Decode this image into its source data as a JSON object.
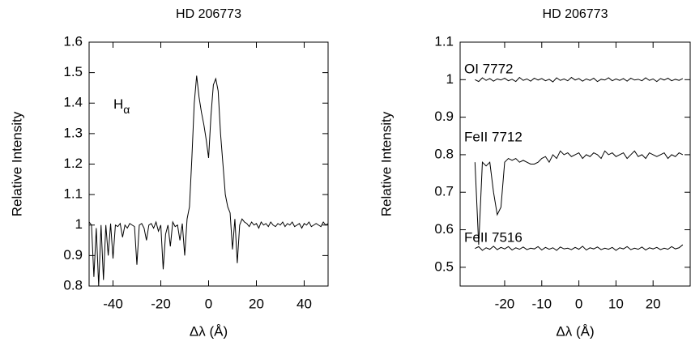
{
  "chart_data": [
    {
      "type": "line",
      "title": "HD 206773",
      "xlabel": "Δλ (Å)",
      "ylabel": "Relative Intensity",
      "annotation": {
        "text": "H",
        "subscript": "α"
      },
      "xlim": [
        -50,
        50
      ],
      "ylim": [
        0.8,
        1.6
      ],
      "xticks": [
        -40,
        -20,
        0,
        20,
        40
      ],
      "yticks": [
        0.8,
        0.9,
        1,
        1.1,
        1.2,
        1.3,
        1.4,
        1.5,
        1.6
      ],
      "x": [
        -50,
        -49,
        -48,
        -47,
        -46,
        -45,
        -44,
        -43,
        -42,
        -41,
        -40,
        -39,
        -38,
        -37,
        -36,
        -35,
        -34,
        -33,
        -32,
        -31,
        -30,
        -29,
        -28,
        -27,
        -26,
        -25,
        -24,
        -23,
        -22,
        -21,
        -20,
        -19,
        -18,
        -17,
        -16,
        -15,
        -14,
        -13,
        -12,
        -11,
        -10,
        -9,
        -8,
        -7,
        -6,
        -5,
        -4,
        -3,
        -2,
        -1,
        0,
        1,
        2,
        3,
        4,
        5,
        6,
        7,
        8,
        9,
        10,
        11,
        12,
        13,
        14,
        15,
        16,
        17,
        18,
        19,
        20,
        21,
        22,
        23,
        24,
        25,
        26,
        27,
        28,
        29,
        30,
        31,
        32,
        33,
        34,
        35,
        36,
        37,
        38,
        39,
        40,
        41,
        42,
        43,
        44,
        45,
        46,
        47,
        48,
        49,
        50
      ],
      "series": [
        {
          "color": "#000000",
          "values": [
            1.01,
            1.0,
            0.83,
            0.99,
            0.8,
            1.0,
            0.82,
            1.0,
            0.9,
            1.005,
            0.89,
            1.0,
            0.995,
            1.005,
            0.96,
            1.0,
            0.99,
            1.005,
            1.0,
            0.995,
            0.87,
            1.0,
            1.005,
            0.99,
            0.95,
            1.0,
            1.005,
            0.99,
            1.01,
            0.98,
            1.0,
            0.855,
            0.97,
            1.0,
            0.93,
            1.01,
            0.995,
            1.0,
            0.95,
            1.005,
            0.9,
            1.02,
            1.06,
            1.22,
            1.4,
            1.49,
            1.42,
            1.37,
            1.33,
            1.28,
            1.22,
            1.36,
            1.46,
            1.48,
            1.44,
            1.3,
            1.2,
            1.1,
            1.06,
            1.04,
            0.92,
            1.02,
            0.875,
            1.0,
            1.02,
            1.01,
            1.005,
            0.995,
            1.01,
            1.0,
            1.005,
            0.99,
            1.01,
            1.0,
            1.005,
            0.995,
            1.01,
            1.0,
            0.995,
            1.005,
            1.0,
            1.01,
            0.995,
            1.005,
            1.0,
            1.01,
            0.995,
            1.0,
            1.005,
            0.99,
            1.005,
            1.0,
            1.01,
            0.995,
            1.0,
            1.005,
            1.0,
            0.995,
            1.01,
            1.0,
            1.005
          ]
        }
      ]
    },
    {
      "type": "line",
      "title": "HD 206773",
      "xlabel": "Δλ (Å)",
      "ylabel": "Relative Intensity",
      "xlim": [
        -32,
        30
      ],
      "ylim": [
        0.45,
        1.1
      ],
      "xticks": [
        -20,
        -10,
        0,
        10,
        20
      ],
      "yticks": [
        0.5,
        0.6,
        0.7,
        0.8,
        0.9,
        1,
        1.1
      ],
      "x": [
        -28,
        -27,
        -26,
        -25,
        -24,
        -23,
        -22,
        -21,
        -20,
        -19,
        -18,
        -17,
        -16,
        -15,
        -14,
        -13,
        -12,
        -11,
        -10,
        -9,
        -8,
        -7,
        -6,
        -5,
        -4,
        -3,
        -2,
        -1,
        0,
        1,
        2,
        3,
        4,
        5,
        6,
        7,
        8,
        9,
        10,
        11,
        12,
        13,
        14,
        15,
        16,
        17,
        18,
        19,
        20,
        21,
        22,
        23,
        24,
        25,
        26,
        27,
        28
      ],
      "series": [
        {
          "name": "OI 7772",
          "color": "#000000",
          "values": [
            1.0,
            0.995,
            1.005,
            0.998,
            1.003,
            0.996,
            1.002,
            0.999,
            1.004,
            0.997,
            1.001,
            0.995,
            1.006,
            0.998,
            1.002,
            0.996,
            1.004,
            0.999,
            1.003,
            0.997,
            1.001,
            0.994,
            1.005,
            0.998,
            1.002,
            0.997,
            1.006,
            0.999,
            1.003,
            0.996,
            1.002,
            0.998,
            1.004,
            0.995,
            1.001,
            0.999,
            1.005,
            0.997,
            1.002,
            0.998,
            1.003,
            0.996,
            1.004,
            0.999,
            1.001,
            0.997,
            1.005,
            0.998,
            1.002,
            0.995,
            1.003,
            0.999,
            1.004,
            0.997,
            1.001,
            0.998,
            1.003
          ]
        },
        {
          "name": "FeII 7712",
          "color": "#000000",
          "values": [
            0.78,
            0.56,
            0.78,
            0.77,
            0.78,
            0.7,
            0.64,
            0.66,
            0.78,
            0.79,
            0.785,
            0.79,
            0.78,
            0.785,
            0.78,
            0.775,
            0.775,
            0.78,
            0.79,
            0.795,
            0.78,
            0.8,
            0.79,
            0.81,
            0.8,
            0.805,
            0.795,
            0.8,
            0.805,
            0.79,
            0.8,
            0.795,
            0.805,
            0.8,
            0.79,
            0.81,
            0.8,
            0.805,
            0.795,
            0.8,
            0.805,
            0.79,
            0.8,
            0.81,
            0.795,
            0.8,
            0.79,
            0.805,
            0.8,
            0.795,
            0.8,
            0.805,
            0.79,
            0.8,
            0.795,
            0.805,
            0.8
          ]
        },
        {
          "name": "FeII 7516",
          "color": "#000000",
          "values": [
            0.55,
            0.555,
            0.545,
            0.552,
            0.548,
            0.556,
            0.547,
            0.553,
            0.549,
            0.555,
            0.546,
            0.552,
            0.548,
            0.554,
            0.547,
            0.551,
            0.549,
            0.555,
            0.546,
            0.553,
            0.548,
            0.552,
            0.545,
            0.554,
            0.549,
            0.551,
            0.547,
            0.553,
            0.548,
            0.556,
            0.546,
            0.552,
            0.549,
            0.554,
            0.547,
            0.551,
            0.548,
            0.553,
            0.545,
            0.552,
            0.549,
            0.555,
            0.547,
            0.551,
            0.548,
            0.554,
            0.546,
            0.552,
            0.549,
            0.553,
            0.547,
            0.551,
            0.548,
            0.555,
            0.549,
            0.552,
            0.56
          ]
        }
      ]
    }
  ]
}
